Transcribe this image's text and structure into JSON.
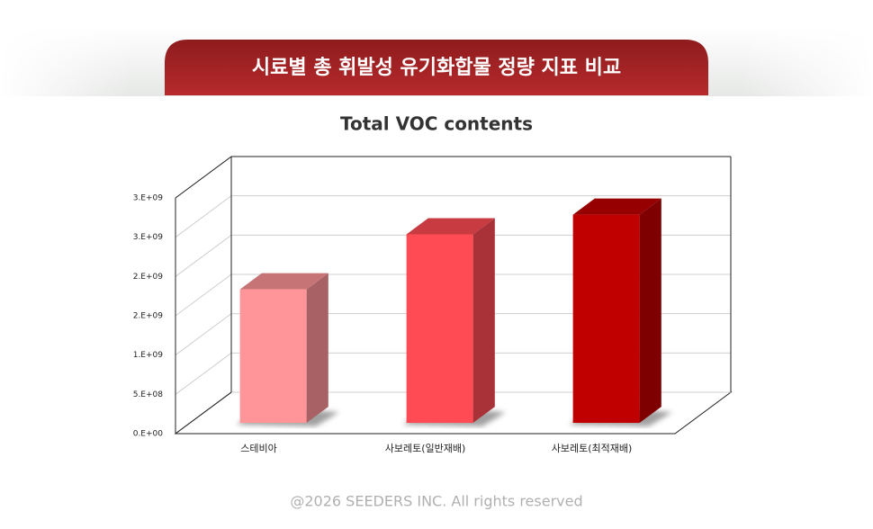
{
  "header": {
    "title": "시료별 총 휘발성 유기화합물 정량 지표 비교"
  },
  "chart_data": {
    "type": "bar3d",
    "title": "Total VOC contents",
    "categories": [
      "스테비아",
      "사보레토(일반재배)",
      "사보레토(최적재배)"
    ],
    "values": [
      1700000000,
      2400000000,
      2650000000
    ],
    "colors": [
      "#ff9599",
      "#ff4b53",
      "#c00000"
    ],
    "ylim": [
      0,
      3000000000
    ],
    "yticks": [
      {
        "value": 0,
        "label": "0.E+00"
      },
      {
        "value": 500000000,
        "label": "5.E+08"
      },
      {
        "value": 1000000000,
        "label": "1.E+09"
      },
      {
        "value": 1500000000,
        "label": "2.E+09"
      },
      {
        "value": 2000000000,
        "label": "2.E+09"
      },
      {
        "value": 2500000000,
        "label": "3.E+09"
      },
      {
        "value": 3000000000,
        "label": "3.E+09"
      }
    ],
    "grid": true
  },
  "footer": {
    "text": "@2026 SEEDERS INC. All rights reserved"
  }
}
